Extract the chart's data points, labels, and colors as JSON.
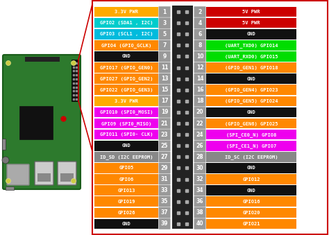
{
  "background_color": "#ffffff",
  "border_color": "#cc0000",
  "fig_w": 4.74,
  "fig_h": 3.39,
  "dpi": 100,
  "left_pins": [
    {
      "num": 1,
      "label": "3.3V PWR",
      "color": "#ffaa00",
      "text_color": "#ffffff"
    },
    {
      "num": 3,
      "label": "GPIO2 (SDA1 , I2C)",
      "color": "#00cccc",
      "text_color": "#ffffff"
    },
    {
      "num": 5,
      "label": "GPIO3 (SCL1 , I2C)",
      "color": "#00bbdd",
      "text_color": "#ffffff"
    },
    {
      "num": 7,
      "label": "GPIO4 (GPIO_GCLK)",
      "color": "#ff8800",
      "text_color": "#ffffff"
    },
    {
      "num": 9,
      "label": "GND",
      "color": "#111111",
      "text_color": "#ffffff"
    },
    {
      "num": 11,
      "label": "GPIO17 (GPIO_GEN0)",
      "color": "#ff8800",
      "text_color": "#ffffff"
    },
    {
      "num": 13,
      "label": "GPIO27 (GPIO_GEN2)",
      "color": "#ff8800",
      "text_color": "#ffffff"
    },
    {
      "num": 15,
      "label": "GPIO22 (GPIO_GEN3)",
      "color": "#ff8800",
      "text_color": "#ffffff"
    },
    {
      "num": 17,
      "label": "3.3V PWR",
      "color": "#ffaa00",
      "text_color": "#ffffff"
    },
    {
      "num": 19,
      "label": "GPIO10 (SPI0_MOSI)",
      "color": "#ee00ee",
      "text_color": "#ffffff"
    },
    {
      "num": 21,
      "label": "GPIO9 (SPI0_MISO)",
      "color": "#ee00ee",
      "text_color": "#ffffff"
    },
    {
      "num": 23,
      "label": "GPIO11 (SPI0- CLK)",
      "color": "#ee00ee",
      "text_color": "#ffffff"
    },
    {
      "num": 25,
      "label": "GND",
      "color": "#111111",
      "text_color": "#ffffff"
    },
    {
      "num": 27,
      "label": "ID_SD (I2C EEPROM)",
      "color": "#888888",
      "text_color": "#ffffff"
    },
    {
      "num": 29,
      "label": "GPIO5",
      "color": "#ff8800",
      "text_color": "#ffffff"
    },
    {
      "num": 31,
      "label": "GPIO6",
      "color": "#ff8800",
      "text_color": "#ffffff"
    },
    {
      "num": 33,
      "label": "GPIO13",
      "color": "#ff8800",
      "text_color": "#ffffff"
    },
    {
      "num": 35,
      "label": "GPIO19",
      "color": "#ff8800",
      "text_color": "#ffffff"
    },
    {
      "num": 37,
      "label": "GPIO26",
      "color": "#ff8800",
      "text_color": "#ffffff"
    },
    {
      "num": 39,
      "label": "GND",
      "color": "#111111",
      "text_color": "#ffffff"
    }
  ],
  "right_pins": [
    {
      "num": 2,
      "label": "5V PWR",
      "color": "#cc0000",
      "text_color": "#ffffff"
    },
    {
      "num": 4,
      "label": "5V PWR",
      "color": "#cc0000",
      "text_color": "#ffffff"
    },
    {
      "num": 6,
      "label": "GND",
      "color": "#111111",
      "text_color": "#ffffff"
    },
    {
      "num": 8,
      "label": "(UART_TXD0) GPIO14",
      "color": "#00dd00",
      "text_color": "#ffffff"
    },
    {
      "num": 10,
      "label": "(UART_RXD0) GPIO15",
      "color": "#00dd00",
      "text_color": "#ffffff"
    },
    {
      "num": 12,
      "label": "(GPIO_GEN1) GPIO18",
      "color": "#ff8800",
      "text_color": "#ffffff"
    },
    {
      "num": 14,
      "label": "GND",
      "color": "#111111",
      "text_color": "#ffffff"
    },
    {
      "num": 16,
      "label": "(GPIO_GEN4) GPIO23",
      "color": "#ff8800",
      "text_color": "#ffffff"
    },
    {
      "num": 18,
      "label": "(GPIO_GEN5) GPIO24",
      "color": "#ff8800",
      "text_color": "#ffffff"
    },
    {
      "num": 20,
      "label": "GND",
      "color": "#111111",
      "text_color": "#ffffff"
    },
    {
      "num": 22,
      "label": "(GPIO_GEN6) GPIO25",
      "color": "#ff8800",
      "text_color": "#ffffff"
    },
    {
      "num": 24,
      "label": "(SPI_CE0_N) GPIO8",
      "color": "#ee00ee",
      "text_color": "#ffffff"
    },
    {
      "num": 26,
      "label": "(SPI_CE1_N) GPIO7",
      "color": "#ee00ee",
      "text_color": "#ffffff"
    },
    {
      "num": 28,
      "label": "ID_SC (I2C EEPROM)",
      "color": "#888888",
      "text_color": "#ffffff"
    },
    {
      "num": 30,
      "label": "GND",
      "color": "#111111",
      "text_color": "#ffffff"
    },
    {
      "num": 32,
      "label": "GPIO12",
      "color": "#ff8800",
      "text_color": "#ffffff"
    },
    {
      "num": 34,
      "label": "GND",
      "color": "#111111",
      "text_color": "#ffffff"
    },
    {
      "num": 36,
      "label": "GPIO16",
      "color": "#ff8800",
      "text_color": "#ffffff"
    },
    {
      "num": 38,
      "label": "GPIO20",
      "color": "#ff8800",
      "text_color": "#ffffff"
    },
    {
      "num": 40,
      "label": "GPIO21",
      "color": "#ff8800",
      "text_color": "#ffffff"
    }
  ]
}
